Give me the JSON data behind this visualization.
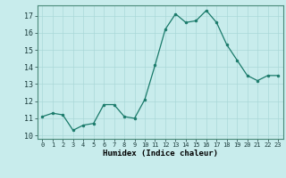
{
  "x": [
    0,
    1,
    2,
    3,
    4,
    5,
    6,
    7,
    8,
    9,
    10,
    11,
    12,
    13,
    14,
    15,
    16,
    17,
    18,
    19,
    20,
    21,
    22,
    23
  ],
  "y": [
    11.1,
    11.3,
    11.2,
    10.3,
    10.6,
    10.7,
    11.8,
    11.8,
    11.1,
    11.0,
    12.1,
    14.1,
    16.2,
    17.1,
    16.6,
    16.7,
    17.3,
    16.6,
    15.3,
    14.4,
    13.5,
    13.2,
    13.5,
    13.5
  ],
  "line_color": "#1a7a6a",
  "marker_color": "#1a7a6a",
  "bg_color": "#c8ecec",
  "grid_color": "#aad8d8",
  "xlabel": "Humidex (Indice chaleur)",
  "ylim": [
    9.8,
    17.6
  ],
  "yticks": [
    10,
    11,
    12,
    13,
    14,
    15,
    16,
    17
  ],
  "xlim": [
    -0.5,
    23.5
  ],
  "xticks": [
    0,
    1,
    2,
    3,
    4,
    5,
    6,
    7,
    8,
    9,
    10,
    11,
    12,
    13,
    14,
    15,
    16,
    17,
    18,
    19,
    20,
    21,
    22,
    23
  ],
  "xtick_labels": [
    "0",
    "1",
    "2",
    "3",
    "4",
    "5",
    "6",
    "7",
    "8",
    "9",
    "10",
    "11",
    "12",
    "13",
    "14",
    "15",
    "16",
    "17",
    "18",
    "19",
    "20",
    "21",
    "22",
    "23"
  ]
}
